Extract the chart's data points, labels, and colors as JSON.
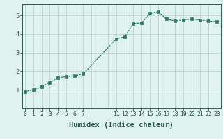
{
  "x": [
    0,
    1,
    2,
    3,
    4,
    5,
    6,
    7,
    11,
    12,
    13,
    14,
    15,
    16,
    17,
    18,
    19,
    20,
    21,
    22,
    23
  ],
  "y": [
    0.9,
    1.0,
    1.15,
    1.4,
    1.65,
    1.7,
    1.75,
    1.85,
    3.75,
    3.85,
    4.55,
    4.6,
    5.1,
    5.2,
    4.8,
    4.7,
    4.75,
    4.8,
    4.75,
    4.7,
    4.65
  ],
  "xtick_positions": [
    0,
    1,
    2,
    3,
    4,
    5,
    6,
    7,
    11,
    12,
    13,
    14,
    15,
    16,
    17,
    18,
    19,
    20,
    21,
    22,
    23
  ],
  "xtick_labels": [
    "0",
    "1",
    "2",
    "3",
    "4",
    "5",
    "6",
    "7",
    "11",
    "12",
    "13",
    "14",
    "15",
    "16",
    "17",
    "18",
    "19",
    "20",
    "21",
    "22",
    "23"
  ],
  "yticks": [
    1,
    2,
    3,
    4,
    5
  ],
  "ylim": [
    0.0,
    5.6
  ],
  "xlim": [
    -0.3,
    23.5
  ],
  "xlabel": "Humidex (Indice chaleur)",
  "line_color": "#2a7a6a",
  "bg_color": "#dff2ee",
  "grid_color": "#b8d8d2",
  "tick_color": "#2a5a52",
  "markersize": 2.5,
  "linewidth": 0.9,
  "xlabel_fontsize": 7.5,
  "tick_fontsize": 5.8
}
